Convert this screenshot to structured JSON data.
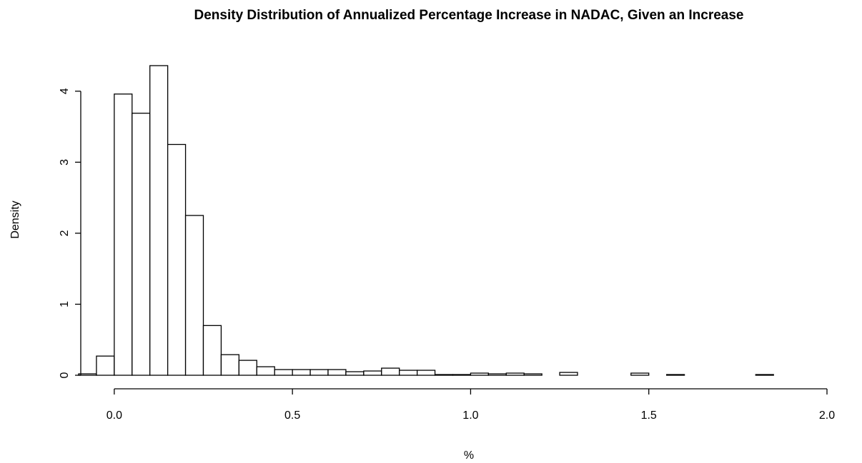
{
  "chart_data": {
    "type": "histogram",
    "title": "Density Distribution of Annualized Percentage Increase in NADAC, Given an Increase",
    "xlabel": "%",
    "ylabel": "Density",
    "bins": [
      -0.1,
      -0.05,
      0,
      0.05,
      0.1,
      0.15,
      0.2,
      0.25,
      0.3,
      0.35,
      0.4,
      0.45,
      0.5,
      0.55,
      0.6,
      0.65,
      0.7,
      0.75,
      0.8,
      0.85,
      0.9,
      0.95,
      1.0,
      1.05,
      1.1,
      1.15,
      1.2,
      1.25,
      1.3,
      1.35,
      1.4,
      1.45,
      1.5,
      1.55,
      1.6,
      1.65,
      1.7,
      1.75,
      1.8,
      1.85
    ],
    "values": [
      0.02,
      0.27,
      3.96,
      3.69,
      4.36,
      3.25,
      2.25,
      0.7,
      0.29,
      0.21,
      0.12,
      0.08,
      0.08,
      0.08,
      0.08,
      0.05,
      0.06,
      0.1,
      0.07,
      0.07,
      0.01,
      0.01,
      0.03,
      0.02,
      0.03,
      0.02,
      0,
      0.04,
      0,
      0,
      0,
      0.03,
      0,
      0.01,
      0,
      0,
      0,
      0,
      0.01
    ],
    "color": "#ffffff",
    "edgecolor": "#000000",
    "xlim": [
      -0.1,
      2
    ],
    "ylim": [
      0,
      4.36
    ],
    "xticks": [
      {
        "value": 0,
        "label": "0.0"
      },
      0.5,
      {
        "value": 1,
        "label": "1.0"
      },
      1.5,
      {
        "value": 2,
        "label": "2.0"
      }
    ],
    "yticks": [
      0,
      1,
      2,
      3,
      4
    ]
  }
}
